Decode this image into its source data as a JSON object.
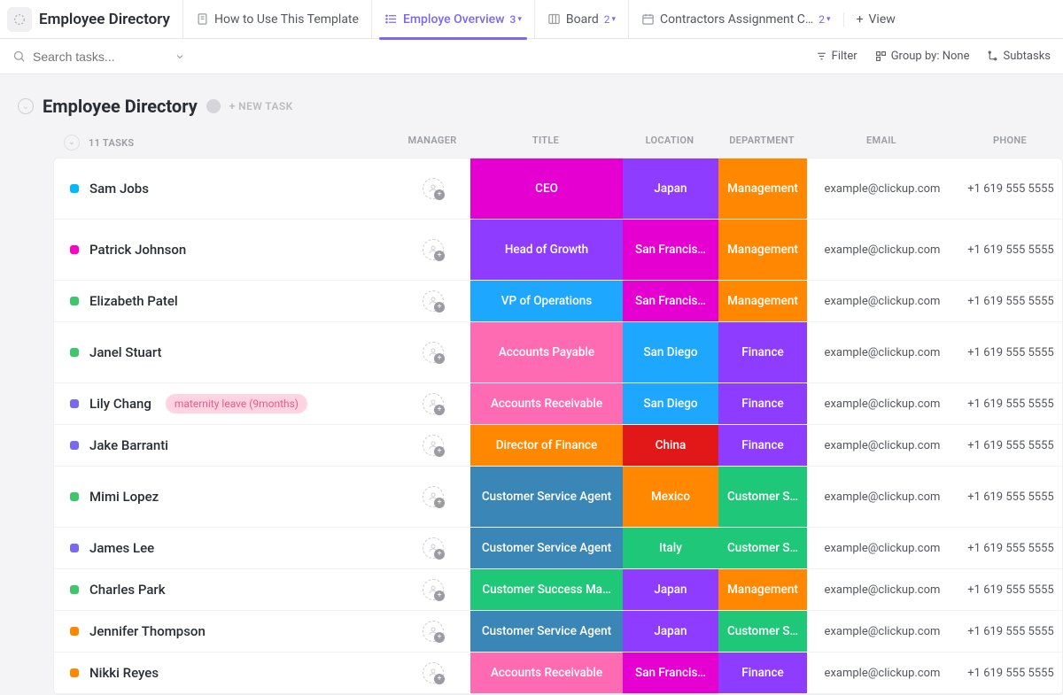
{
  "workspace_title": "Employee Directory",
  "tabs": [
    {
      "icon": "doc",
      "label": "How to Use This Template",
      "count": null
    },
    {
      "icon": "list",
      "label": "Employe Overview",
      "count": "3",
      "active": true
    },
    {
      "icon": "board",
      "label": "Board",
      "count": "2"
    },
    {
      "icon": "calendar",
      "label": "Contractors Assignment C…",
      "count": "2"
    }
  ],
  "add_view_label": "View",
  "search_placeholder": "Search tasks...",
  "toolbar": {
    "filter": "Filter",
    "group": "Group by: None",
    "subtasks": "Subtasks"
  },
  "section": {
    "title": "Employee Directory",
    "new_task": "+ NEW TASK",
    "task_count": "11 TASKS"
  },
  "columns": {
    "manager": "MANAGER",
    "title": "TITLE",
    "location": "LOCATION",
    "department": "DEPARTMENT",
    "email": "EMAIL",
    "phone": "PHONE"
  },
  "colors": {
    "status": {
      "cyan": "#00b8ff",
      "magenta": "#ff00c9",
      "green": "#3ec76a",
      "purple": "#7b68ee",
      "orange": "#ff8800"
    },
    "cells": {
      "magenta": "#e500d1",
      "purple": "#8e3cff",
      "orange": "#ff8800",
      "blue": "#1ea7ff",
      "pink": "#ff6bb3",
      "red": "#e21717",
      "steel": "#3a87b7",
      "green": "#1fc778"
    },
    "tag_bg": "#ffd3e0",
    "tag_fg": "#e85a8c"
  },
  "rows": [
    {
      "status": "cyan",
      "name": "Sam Jobs",
      "title": "CEO",
      "title_c": "magenta",
      "location": "Japan",
      "loc_c": "purple",
      "department": "Management",
      "dept_c": "orange",
      "email": "example@clickup.com",
      "phone": "+1 619 555 5555",
      "tall_title": true,
      "tall_dept": true
    },
    {
      "status": "magenta",
      "name": "Patrick Johnson",
      "title": "Head of Growth",
      "title_c": "purple",
      "location": "San Francis…",
      "loc_c": "magenta",
      "department": "Management",
      "dept_c": "orange",
      "email": "example@clickup.com",
      "phone": "+1 619 555 5555",
      "tall_loc": true
    },
    {
      "status": "green",
      "name": "Elizabeth Patel",
      "title": "VP of Operations",
      "title_c": "blue",
      "location": "San Francis…",
      "loc_c": "magenta",
      "department": "Management",
      "dept_c": "orange",
      "email": "example@clickup.com",
      "phone": "+1 619 555 5555"
    },
    {
      "status": "green",
      "name": "Janel Stuart",
      "title": "Accounts Payable",
      "title_c": "pink",
      "location": "San Diego",
      "loc_c": "blue",
      "department": "Finance",
      "dept_c": "purple",
      "email": "example@clickup.com",
      "phone": "+1 619 555 5555",
      "tall_loc": true,
      "tall_dept": true
    },
    {
      "status": "purple",
      "name": "Lily Chang",
      "tag": "maternity leave (9months)",
      "title": "Accounts Receivable",
      "title_c": "pink",
      "location": "San Diego",
      "loc_c": "blue",
      "department": "Finance",
      "dept_c": "purple",
      "email": "example@clickup.com",
      "phone": "+1 619 555 5555"
    },
    {
      "status": "purple",
      "name": "Jake Barranti",
      "title": "Director of Finance",
      "title_c": "orange",
      "location": "China",
      "loc_c": "red",
      "department": "Finance",
      "dept_c": "purple",
      "email": "example@clickup.com",
      "phone": "+1 619 555 5555"
    },
    {
      "status": "green",
      "name": "Mimi Lopez",
      "title": "Customer Service Agent",
      "title_c": "steel",
      "location": "Mexico",
      "loc_c": "orange",
      "department": "Customer S…",
      "dept_c": "green",
      "email": "example@clickup.com",
      "phone": "+1 619 555 5555",
      "tall_title": true,
      "tall_loc": true,
      "tall_dept": true
    },
    {
      "status": "purple",
      "name": "James Lee",
      "title": "Customer Service Agent",
      "title_c": "steel",
      "location": "Italy",
      "loc_c": "green",
      "department": "Customer S…",
      "dept_c": "green",
      "email": "example@clickup.com",
      "phone": "+1 619 555 5555"
    },
    {
      "status": "green",
      "name": "Charles Park",
      "title": "Customer Success Ma…",
      "title_c": "green",
      "location": "Japan",
      "loc_c": "purple",
      "department": "Management",
      "dept_c": "orange",
      "email": "example@clickup.com",
      "phone": "+1 619 555 5555"
    },
    {
      "status": "orange",
      "name": "Jennifer Thompson",
      "title": "Customer Service Agent",
      "title_c": "steel",
      "location": "Japan",
      "loc_c": "purple",
      "department": "Customer S…",
      "dept_c": "green",
      "email": "example@clickup.com",
      "phone": "+1 619 555 5555"
    },
    {
      "status": "orange",
      "name": "Nikki Reyes",
      "title": "Accounts Receivable",
      "title_c": "pink",
      "location": "San Francis…",
      "loc_c": "magenta",
      "department": "Finance",
      "dept_c": "purple",
      "email": "example@clickup.com",
      "phone": "+1 619 555 5555"
    }
  ]
}
